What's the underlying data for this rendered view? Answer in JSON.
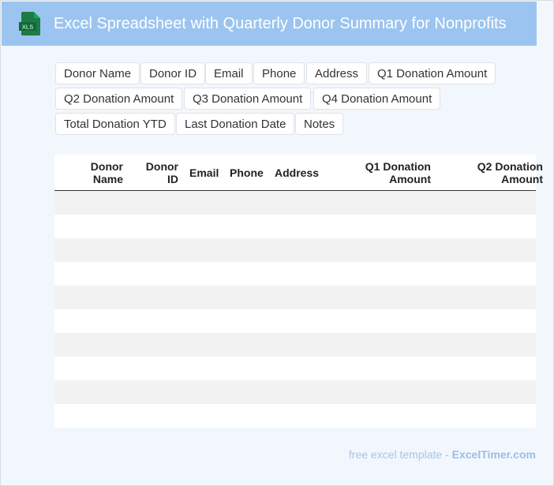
{
  "header": {
    "title": "Excel Spreadsheet with Quarterly Donor Summary for Nonprofits",
    "icon": "xls-file-icon",
    "icon_label": "XLS",
    "background": "#9cc4f0"
  },
  "fields": [
    "Donor Name",
    "Donor ID",
    "Email",
    "Phone",
    "Address",
    "Q1 Donation Amount",
    "Q2 Donation Amount",
    "Q3 Donation Amount",
    "Q4 Donation Amount",
    "Total Donation YTD",
    "Last Donation Date",
    "Notes"
  ],
  "table": {
    "columns": [
      {
        "lines": [
          "Donor",
          "Name"
        ]
      },
      {
        "lines": [
          "Donor",
          "ID"
        ]
      },
      {
        "lines": [
          "Email"
        ]
      },
      {
        "lines": [
          "Phone"
        ]
      },
      {
        "lines": [
          "Address"
        ]
      },
      {
        "lines": [
          "Q1 Donation",
          "Amount"
        ]
      },
      {
        "lines": [
          "Q2 Donation",
          "Amount"
        ]
      }
    ],
    "empty_row_count": 10
  },
  "footer": {
    "prefix": "free excel template - ",
    "brand": "ExcelTimer.com"
  }
}
